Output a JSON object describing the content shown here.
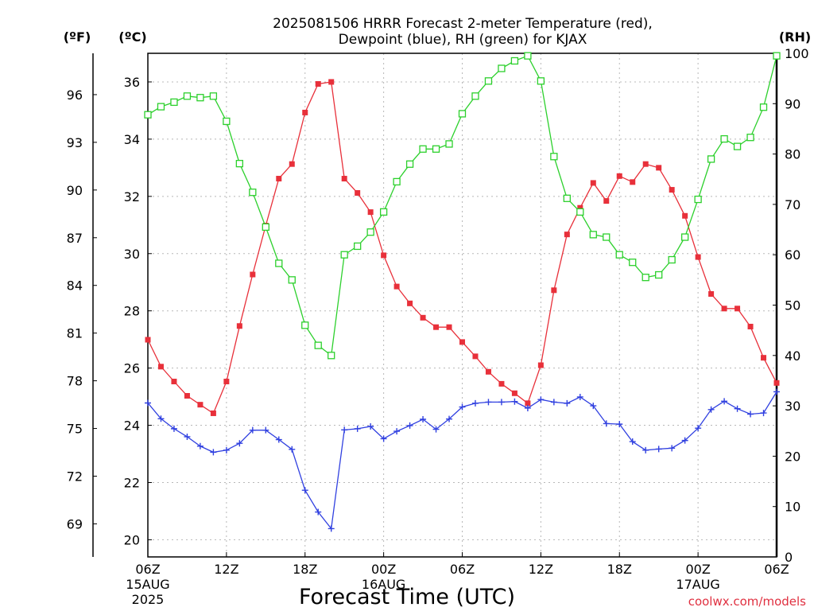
{
  "chart_data": {
    "type": "line",
    "title": "2025081506 HRRR Forecast 2-meter Temperature (red),",
    "subtitle": "Dewpoint (blue), RH (green) for KJAX",
    "xlabel": "Forecast Time (UTC)",
    "left_unit_f": "(ºF)",
    "left_unit_c": "(ºC)",
    "right_unit": "(RH)",
    "credit": "coolwx.com/models",
    "ylim_c": [
      19.4,
      37.0
    ],
    "ylim_rh": [
      0,
      100
    ],
    "grid": "dotted",
    "x_ticks": [
      {
        "label": "06Z",
        "sub1": "15AUG",
        "sub2": "2025",
        "hour": 0
      },
      {
        "label": "12Z",
        "sub1": "",
        "sub2": "",
        "hour": 6
      },
      {
        "label": "18Z",
        "sub1": "",
        "sub2": "",
        "hour": 12
      },
      {
        "label": "00Z",
        "sub1": "16AUG",
        "sub2": "",
        "hour": 18
      },
      {
        "label": "06Z",
        "sub1": "",
        "sub2": "",
        "hour": 24
      },
      {
        "label": "12Z",
        "sub1": "",
        "sub2": "",
        "hour": 30
      },
      {
        "label": "18Z",
        "sub1": "",
        "sub2": "",
        "hour": 36
      },
      {
        "label": "00Z",
        "sub1": "17AUG",
        "sub2": "",
        "hour": 42
      },
      {
        "label": "06Z",
        "sub1": "",
        "sub2": "",
        "hour": 48
      }
    ],
    "y_ticks_c": [
      20,
      22,
      24,
      26,
      28,
      30,
      32,
      34,
      36
    ],
    "y_ticks_f": [
      69,
      72,
      75,
      78,
      81,
      84,
      87,
      90,
      93,
      96
    ],
    "y_ticks_rh": [
      0,
      10,
      20,
      30,
      40,
      50,
      60,
      70,
      80,
      90,
      100
    ],
    "x_hours": [
      0,
      1,
      2,
      3,
      4,
      5,
      6,
      7,
      8,
      9,
      10,
      11,
      12,
      13,
      14,
      15,
      16,
      17,
      18,
      19,
      20,
      21,
      22,
      23,
      24,
      25,
      26,
      27,
      28,
      29,
      30,
      31,
      32,
      33,
      34,
      35,
      36,
      37,
      38,
      39,
      40,
      41,
      42,
      43,
      44,
      45,
      46,
      47,
      48
    ],
    "series": [
      {
        "name": "Temperature",
        "units": "C",
        "color": "#e8303a",
        "marker": "square-filled",
        "values": [
          26.99,
          26.05,
          25.53,
          25.03,
          24.72,
          24.42,
          25.53,
          27.47,
          29.27,
          30.98,
          32.62,
          33.13,
          34.93,
          35.93,
          36.0,
          32.62,
          32.12,
          31.45,
          29.94,
          28.85,
          28.26,
          27.76,
          27.43,
          27.43,
          26.91,
          26.41,
          25.87,
          25.45,
          25.12,
          24.77,
          26.1,
          28.72,
          30.67,
          31.6,
          32.47,
          31.84,
          32.71,
          32.5,
          33.13,
          33.0,
          32.23,
          31.32,
          29.88,
          28.59,
          28.08,
          28.08,
          27.45,
          26.36,
          25.48
        ]
      },
      {
        "name": "Dewpoint",
        "units": "C",
        "color": "#3040e0",
        "marker": "plus",
        "values": [
          24.78,
          24.23,
          23.88,
          23.6,
          23.27,
          23.06,
          23.13,
          23.37,
          23.83,
          23.83,
          23.5,
          23.16,
          21.73,
          20.97,
          20.39,
          23.84,
          23.88,
          23.96,
          23.53,
          23.79,
          23.99,
          24.21,
          23.86,
          24.22,
          24.64,
          24.77,
          24.81,
          24.81,
          24.83,
          24.6,
          24.9,
          24.81,
          24.77,
          24.99,
          24.68,
          24.06,
          24.04,
          23.43,
          23.13,
          23.17,
          23.2,
          23.47,
          23.9,
          24.55,
          24.84,
          24.58,
          24.39,
          24.43,
          25.17
        ]
      },
      {
        "name": "RH",
        "units": "%",
        "color": "#2cd02c",
        "marker": "square-open",
        "values": [
          87.8,
          89.4,
          90.3,
          91.5,
          91.2,
          91.5,
          86.5,
          78.1,
          72.4,
          65.5,
          58.3,
          55.0,
          46.0,
          42.0,
          40.0,
          60.0,
          61.7,
          64.5,
          68.5,
          74.5,
          78.0,
          81.0,
          81.0,
          82.0,
          88.0,
          91.5,
          94.5,
          97.0,
          98.5,
          99.5,
          94.5,
          79.5,
          71.2,
          68.5,
          64.0,
          63.5,
          60.0,
          58.5,
          55.5,
          56.0,
          59.0,
          63.5,
          71.0,
          79.0,
          83.0,
          81.5,
          83.3,
          89.3,
          99.5
        ]
      }
    ]
  }
}
